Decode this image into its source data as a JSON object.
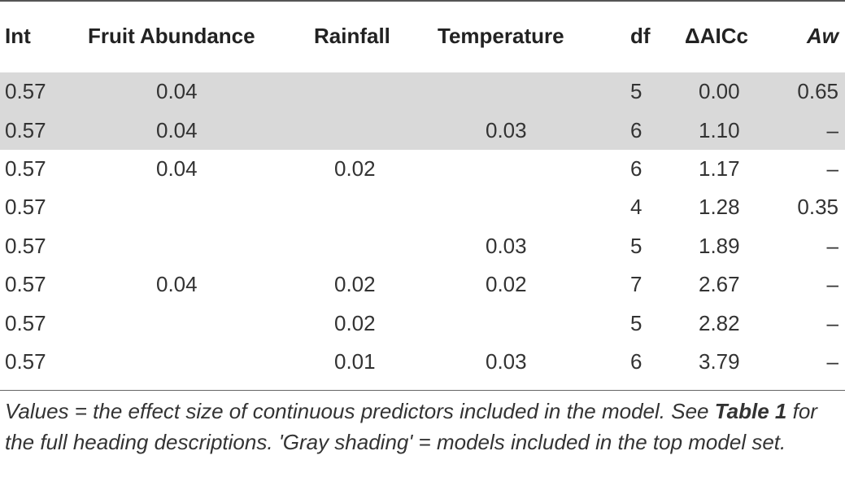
{
  "table": {
    "headers": {
      "int": "Int",
      "fruit": "Fruit Abundance",
      "rainfall": "Rainfall",
      "temperature": "Temperature",
      "df": "df",
      "daicc": "ΔAICc",
      "aw": "Aw"
    },
    "rows": [
      {
        "int": "0.57",
        "fruit": "0.04",
        "rainfall": "",
        "temperature": "",
        "df": "5",
        "daicc": "0.00",
        "aw": "0.65",
        "shaded": true
      },
      {
        "int": "0.57",
        "fruit": "0.04",
        "rainfall": "",
        "temperature": "0.03",
        "df": "6",
        "daicc": "1.10",
        "aw": "–",
        "shaded": true
      },
      {
        "int": "0.57",
        "fruit": "0.04",
        "rainfall": "0.02",
        "temperature": "",
        "df": "6",
        "daicc": "1.17",
        "aw": "–",
        "shaded": false
      },
      {
        "int": "0.57",
        "fruit": "",
        "rainfall": "",
        "temperature": "",
        "df": "4",
        "daicc": "1.28",
        "aw": "0.35",
        "shaded": false
      },
      {
        "int": "0.57",
        "fruit": "",
        "rainfall": "",
        "temperature": "0.03",
        "df": "5",
        "daicc": "1.89",
        "aw": "–",
        "shaded": false
      },
      {
        "int": "0.57",
        "fruit": "0.04",
        "rainfall": "0.02",
        "temperature": "0.02",
        "df": "7",
        "daicc": "2.67",
        "aw": "–",
        "shaded": false
      },
      {
        "int": "0.57",
        "fruit": "",
        "rainfall": "0.02",
        "temperature": "",
        "df": "5",
        "daicc": "2.82",
        "aw": "–",
        "shaded": false
      },
      {
        "int": "0.57",
        "fruit": "",
        "rainfall": "0.01",
        "temperature": "0.03",
        "df": "6",
        "daicc": "3.79",
        "aw": "–",
        "shaded": false
      }
    ],
    "shade_color": "#d9d9d9"
  },
  "notes": {
    "part1": "Values = the effect size of continuous predictors included in the model. See ",
    "table_ref": "Table 1",
    "part2": " for the full heading descriptions. 'Gray shading' = models included in the top model set."
  }
}
